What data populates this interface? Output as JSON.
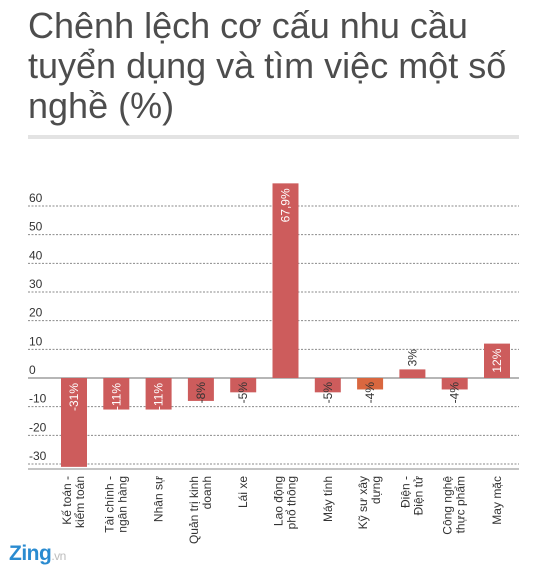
{
  "title": "Chênh lệch cơ cấu nhu cầu tuyển dụng và tìm việc một số nghề (%)",
  "logo": {
    "brand": "Zing",
    "suffix": ".vn"
  },
  "colors": {
    "bar_default": "#cd5c5c",
    "bar_highlight": "#d9673f",
    "grid": "#8a8a8a",
    "label_text": "#ffffff",
    "label_text_dark": "#333333"
  },
  "chart_data": {
    "type": "bar",
    "title": "",
    "xlabel": "",
    "ylabel": "",
    "ylim": [
      -35,
      65
    ],
    "yticks": [
      60,
      50,
      40,
      30,
      20,
      10,
      0,
      -10,
      -20,
      -30
    ],
    "grid": true,
    "categories": [
      "Kế toán - kiểm toán",
      "Tài chính - ngân hàng",
      "Nhân sự",
      "Quản trị kinh doanh",
      "Lái xe",
      "Lao động phổ thông",
      "Máy tính",
      "Kỹ sư xây dựng",
      "Điện - Điện tử",
      "Công nghệ thực phẩm",
      "May mặc"
    ],
    "values": [
      -31,
      -11,
      -11,
      -8,
      -5,
      67.9,
      -5,
      -4,
      3,
      -4,
      12
    ],
    "data_labels": [
      "-31%",
      "-11%",
      "-11%",
      "-8%",
      "-5%",
      "67,9%",
      "-5%",
      "-4%",
      "3%",
      "-4%",
      "12%"
    ],
    "highlight_index": 7
  }
}
